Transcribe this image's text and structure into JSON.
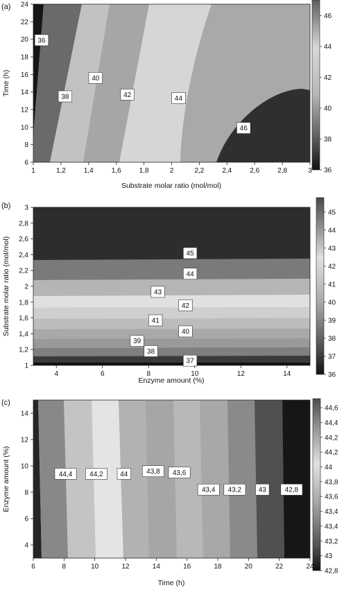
{
  "chart_data": [
    {
      "panel_label": "(a)",
      "type": "heatmap",
      "xlabel": "Substrate molar ratio (mol/mol)",
      "ylabel": "Time (h)",
      "xlim": [
        1,
        3
      ],
      "ylim": [
        6,
        24
      ],
      "x_ticks": [
        "1",
        "1,2",
        "1,4",
        "1,6",
        "1,8",
        "2",
        "2,2",
        "2,4",
        "2,6",
        "2,8",
        "3"
      ],
      "y_ticks": [
        "6",
        "8",
        "10",
        "12",
        "14",
        "16",
        "18",
        "20",
        "22",
        "24"
      ],
      "colorbar_ticks": [
        "36",
        "38",
        "40",
        "42",
        "44",
        "46"
      ],
      "colorbar_range": [
        36,
        47
      ],
      "contour_labels": [
        {
          "text": "36",
          "x": 1.06,
          "y": 19.9
        },
        {
          "text": "38",
          "x": 1.23,
          "y": 13.5
        },
        {
          "text": "40",
          "x": 1.45,
          "y": 15.6
        },
        {
          "text": "42",
          "x": 1.68,
          "y": 13.7
        },
        {
          "text": "44",
          "x": 2.05,
          "y": 13.3
        },
        {
          "text": "46",
          "x": 2.52,
          "y": 9.9
        }
      ]
    },
    {
      "panel_label": "(b)",
      "type": "heatmap",
      "xlabel": "Enzyme amount (%)",
      "ylabel": "Substrate molar ratio (mol/mol)",
      "xlim": [
        3,
        15
      ],
      "ylim": [
        1,
        3
      ],
      "x_ticks": [
        "4",
        "6",
        "8",
        "10",
        "12",
        "14"
      ],
      "y_ticks": [
        "1",
        "1,2",
        "1,4",
        "1,6",
        "1,8",
        "2",
        "2,2",
        "2,4",
        "2,6",
        "2,8",
        "3"
      ],
      "colorbar_ticks": [
        "36",
        "37",
        "38",
        "39",
        "40",
        "41",
        "42",
        "43",
        "44",
        "45"
      ],
      "colorbar_range": [
        36,
        45.8
      ],
      "contour_labels": [
        {
          "text": "45",
          "x": 9.8,
          "y": 2.42
        },
        {
          "text": "44",
          "x": 9.8,
          "y": 2.16
        },
        {
          "text": "43",
          "x": 8.4,
          "y": 1.93
        },
        {
          "text": "42",
          "x": 9.6,
          "y": 1.76
        },
        {
          "text": "41",
          "x": 8.3,
          "y": 1.57
        },
        {
          "text": "40",
          "x": 9.6,
          "y": 1.43
        },
        {
          "text": "39",
          "x": 7.5,
          "y": 1.31
        },
        {
          "text": "38",
          "x": 8.1,
          "y": 1.18
        },
        {
          "text": "37",
          "x": 9.8,
          "y": 1.06
        }
      ]
    },
    {
      "panel_label": "(c)",
      "type": "heatmap",
      "xlabel": "Time (h)",
      "ylabel": "Enzyme amount (%)",
      "xlim": [
        6,
        24
      ],
      "ylim": [
        3,
        15
      ],
      "x_ticks": [
        "6",
        "8",
        "10",
        "12",
        "14",
        "16",
        "18",
        "20",
        "22",
        "24"
      ],
      "y_ticks": [
        "4",
        "6",
        "8",
        "10",
        "12",
        "14"
      ],
      "colorbar_ticks": [
        "42,8",
        "43",
        "43,2",
        "43,4",
        "43,4",
        "43,6",
        "43,8",
        "44",
        "44,2",
        "44,2",
        "44,4",
        "44,6"
      ],
      "colorbar_range": [
        42.8,
        44.7
      ],
      "contour_labels": [
        {
          "text": "44,4",
          "x": 8.1,
          "y": 9.4
        },
        {
          "text": "44,2",
          "x": 10.1,
          "y": 9.4
        },
        {
          "text": "44",
          "x": 11.9,
          "y": 9.4
        },
        {
          "text": "43,8",
          "x": 13.8,
          "y": 9.6
        },
        {
          "text": "43,6",
          "x": 15.5,
          "y": 9.5
        },
        {
          "text": "43,4",
          "x": 17.4,
          "y": 8.2
        },
        {
          "text": "43,2",
          "x": 19.1,
          "y": 8.2
        },
        {
          "text": "43",
          "x": 20.9,
          "y": 8.2
        },
        {
          "text": "42,8",
          "x": 22.8,
          "y": 8.2
        }
      ]
    }
  ]
}
